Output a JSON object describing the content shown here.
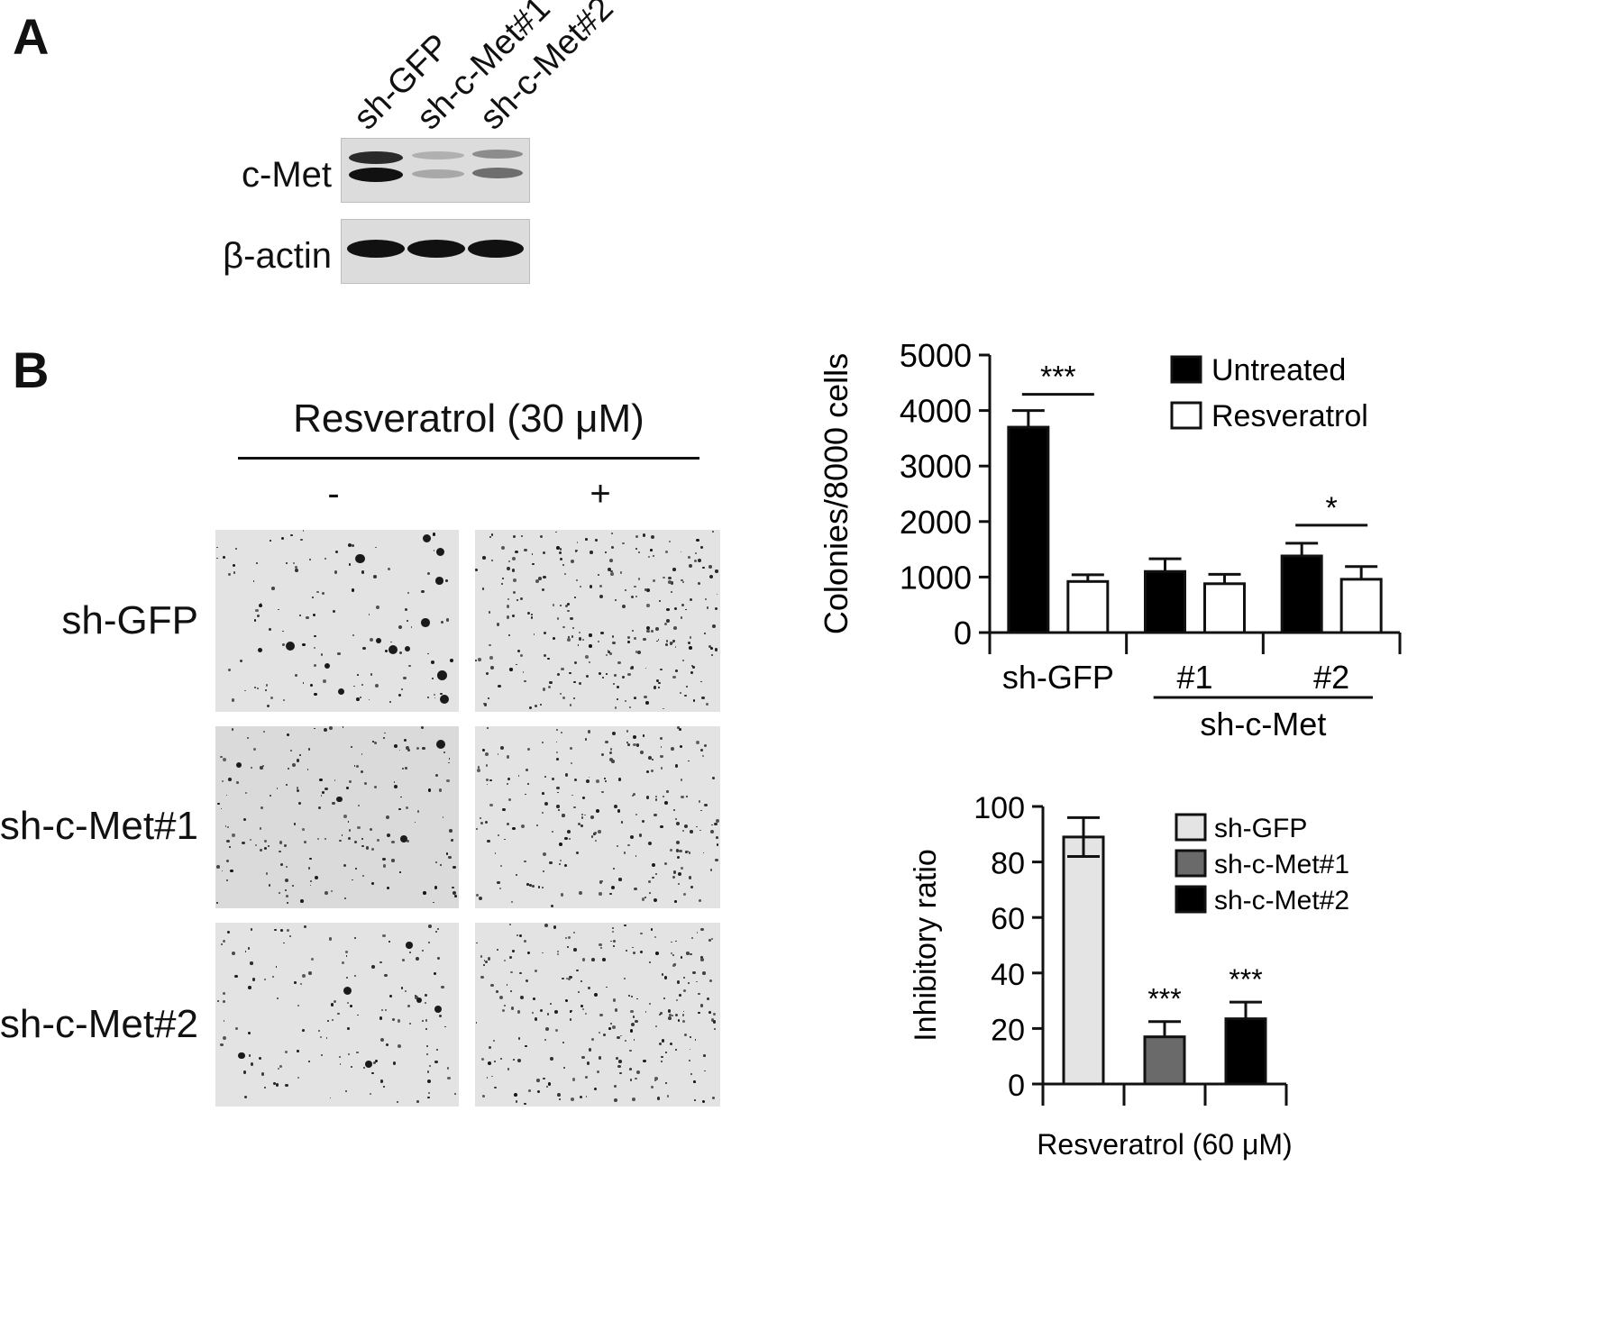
{
  "panel_a": {
    "letter": "A",
    "lanes": [
      "sh-GFP",
      "sh-c-Met#1",
      "sh-c-Met#2"
    ],
    "blots": [
      {
        "label": "c-Met",
        "intensity": [
          1.0,
          0.2,
          0.45
        ]
      },
      {
        "label": "β-actin",
        "intensity": [
          1.0,
          1.0,
          1.0
        ]
      }
    ]
  },
  "panel_b": {
    "letter": "B",
    "treatment_header": "Resveratrol (30 μM)",
    "conditions": [
      "-",
      "+"
    ],
    "rows": [
      "sh-GFP",
      "sh-c-Met#1",
      "sh-c-Met#2"
    ]
  },
  "chart_data": [
    {
      "type": "bar",
      "ylabel": "Colonies/8000 cells",
      "ylim": [
        0,
        5000
      ],
      "yticks": [
        "0",
        "1000",
        "2000",
        "3000",
        "4000",
        "5000"
      ],
      "categories": [
        "sh-GFP",
        "#1",
        "#2"
      ],
      "group_label": "sh-c-Met",
      "series": [
        {
          "name": "Untreated",
          "values": [
            3700,
            1100,
            1380
          ],
          "errors": [
            300,
            230,
            230
          ],
          "color": "#000000"
        },
        {
          "name": "Resveratrol",
          "values": [
            920,
            880,
            960
          ],
          "errors": [
            120,
            170,
            230
          ],
          "color": "#ffffff"
        }
      ],
      "significance": [
        {
          "group": 0,
          "label": "***"
        },
        {
          "group": 2,
          "label": "*"
        }
      ],
      "legend_position": "top-right"
    },
    {
      "type": "bar",
      "ylabel": "Inhibitory ratio",
      "xlabel": "Resveratrol (60 μM)",
      "ylim": [
        0,
        100
      ],
      "yticks": [
        "0",
        "20",
        "40",
        "60",
        "80",
        "100"
      ],
      "series": [
        {
          "name": "sh-GFP",
          "value": 89,
          "error": 7,
          "color": "#e4e4e4",
          "sig": ""
        },
        {
          "name": "sh-c-Met#1",
          "value": 17,
          "error": 5.5,
          "color": "#6a6a6a",
          "sig": "***"
        },
        {
          "name": "sh-c-Met#2",
          "value": 23.5,
          "error": 6,
          "color": "#000000",
          "sig": "***"
        }
      ],
      "legend_position": "top-right"
    }
  ]
}
